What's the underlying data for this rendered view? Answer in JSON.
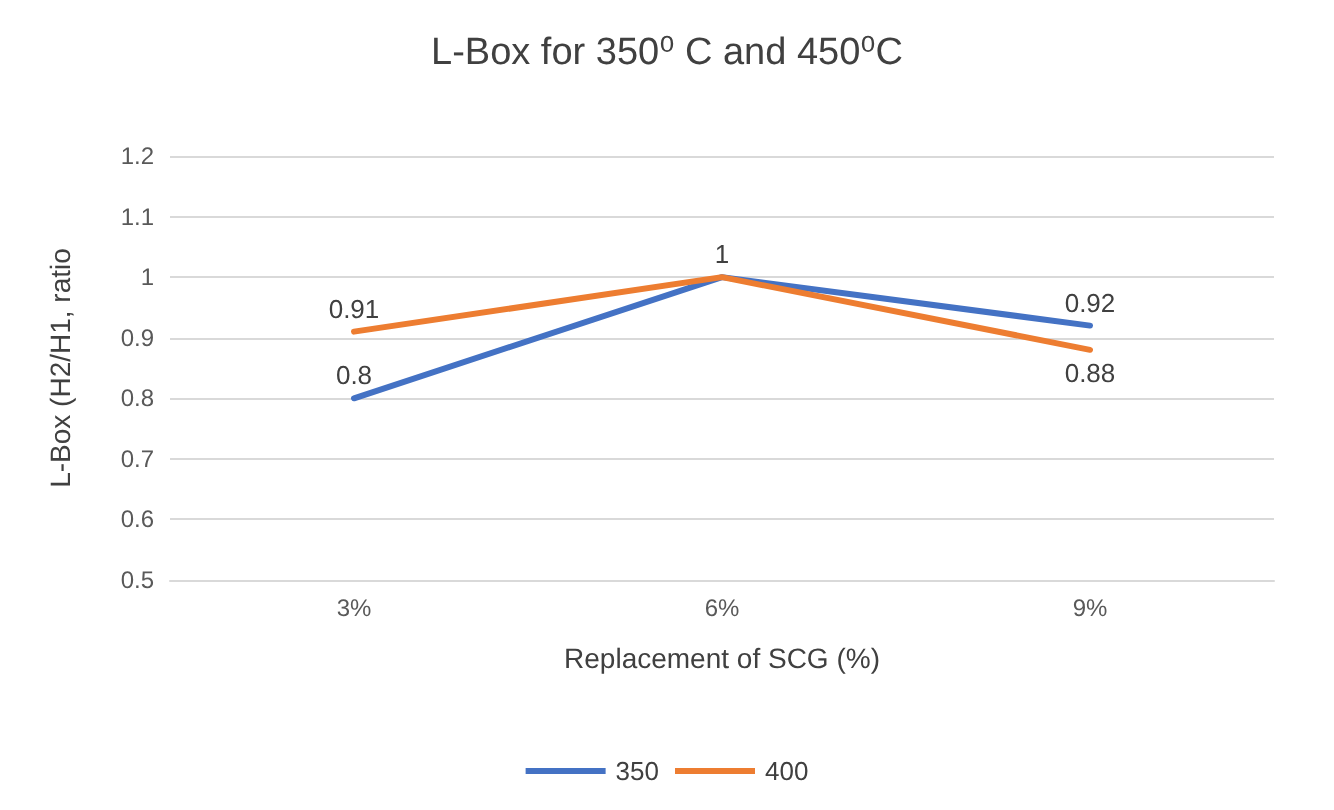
{
  "chart_data": {
    "type": "line",
    "title": "L-Box for 350⁰ C and 450⁰C",
    "xlabel": "Replacement of SCG (%)",
    "ylabel": "L-Box (H2/H1, ratio",
    "categories": [
      "3%",
      "6%",
      "9%"
    ],
    "series": [
      {
        "name": "350",
        "color": "#4472c4",
        "values": [
          0.8,
          1,
          0.92
        ],
        "value_labels": [
          "0.8",
          null,
          "0.92"
        ]
      },
      {
        "name": "400",
        "color": "#ed7d31",
        "values": [
          0.91,
          1,
          0.88
        ],
        "value_labels": [
          "0.91",
          "1",
          "0.88"
        ]
      }
    ],
    "ylim": [
      0.5,
      1.2
    ],
    "yticks": [
      0.5,
      0.6,
      0.7,
      0.8,
      0.9,
      1,
      1.1,
      1.2
    ],
    "grid": "y",
    "legend": "bottom",
    "marker": "none",
    "line_style": "solid"
  }
}
